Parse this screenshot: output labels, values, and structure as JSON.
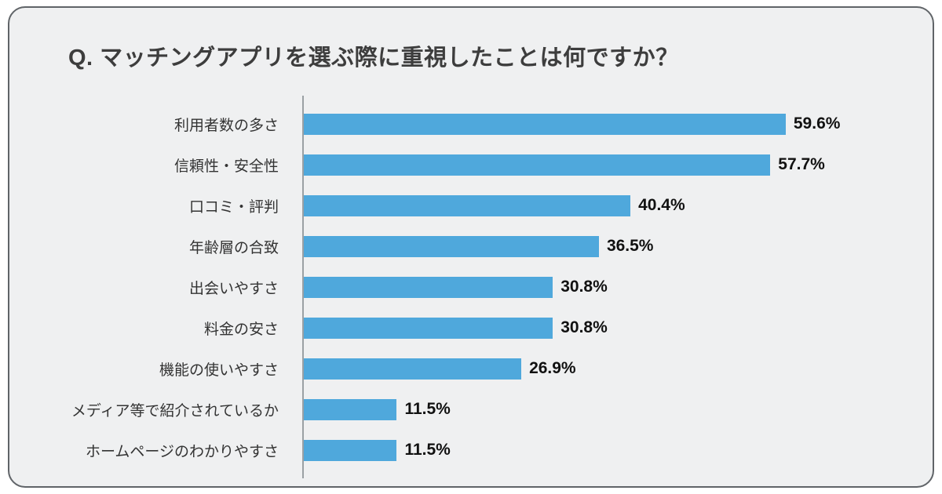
{
  "title": {
    "full": "Q. マッチングアプリを選ぶ際に重視したことは何ですか？"
  },
  "colors": {
    "bar": "#4fa8dc",
    "card_background": "#eff0f1",
    "card_border": "#606468",
    "axis_line": "#9aa0a4",
    "title_text": "#3d3d3d",
    "label_text": "#333333",
    "value_text": "#111111"
  },
  "chart_data": {
    "type": "bar",
    "orientation": "horizontal",
    "title": "Q. マッチングアプリを選ぶ際に重視したことは何ですか？",
    "categories": [
      "利用者数の多さ",
      "信頼性・安全性",
      "口コミ・評判",
      "年齢層の合致",
      "出会いやすさ",
      "料金の安さ",
      "機能の使いやすさ",
      "メディア等で紹介されているか",
      "ホームページのわかりやすさ"
    ],
    "values": [
      59.6,
      57.7,
      40.4,
      36.5,
      30.8,
      30.8,
      26.9,
      11.5,
      11.5
    ],
    "value_labels": [
      "59.6%",
      "57.7%",
      "40.4%",
      "36.5%",
      "30.8%",
      "30.8%",
      "26.9%",
      "11.5%",
      "11.5%"
    ],
    "xlabel": "",
    "ylabel": "",
    "xlim": [
      0,
      100
    ],
    "grid": false,
    "legend": false
  }
}
